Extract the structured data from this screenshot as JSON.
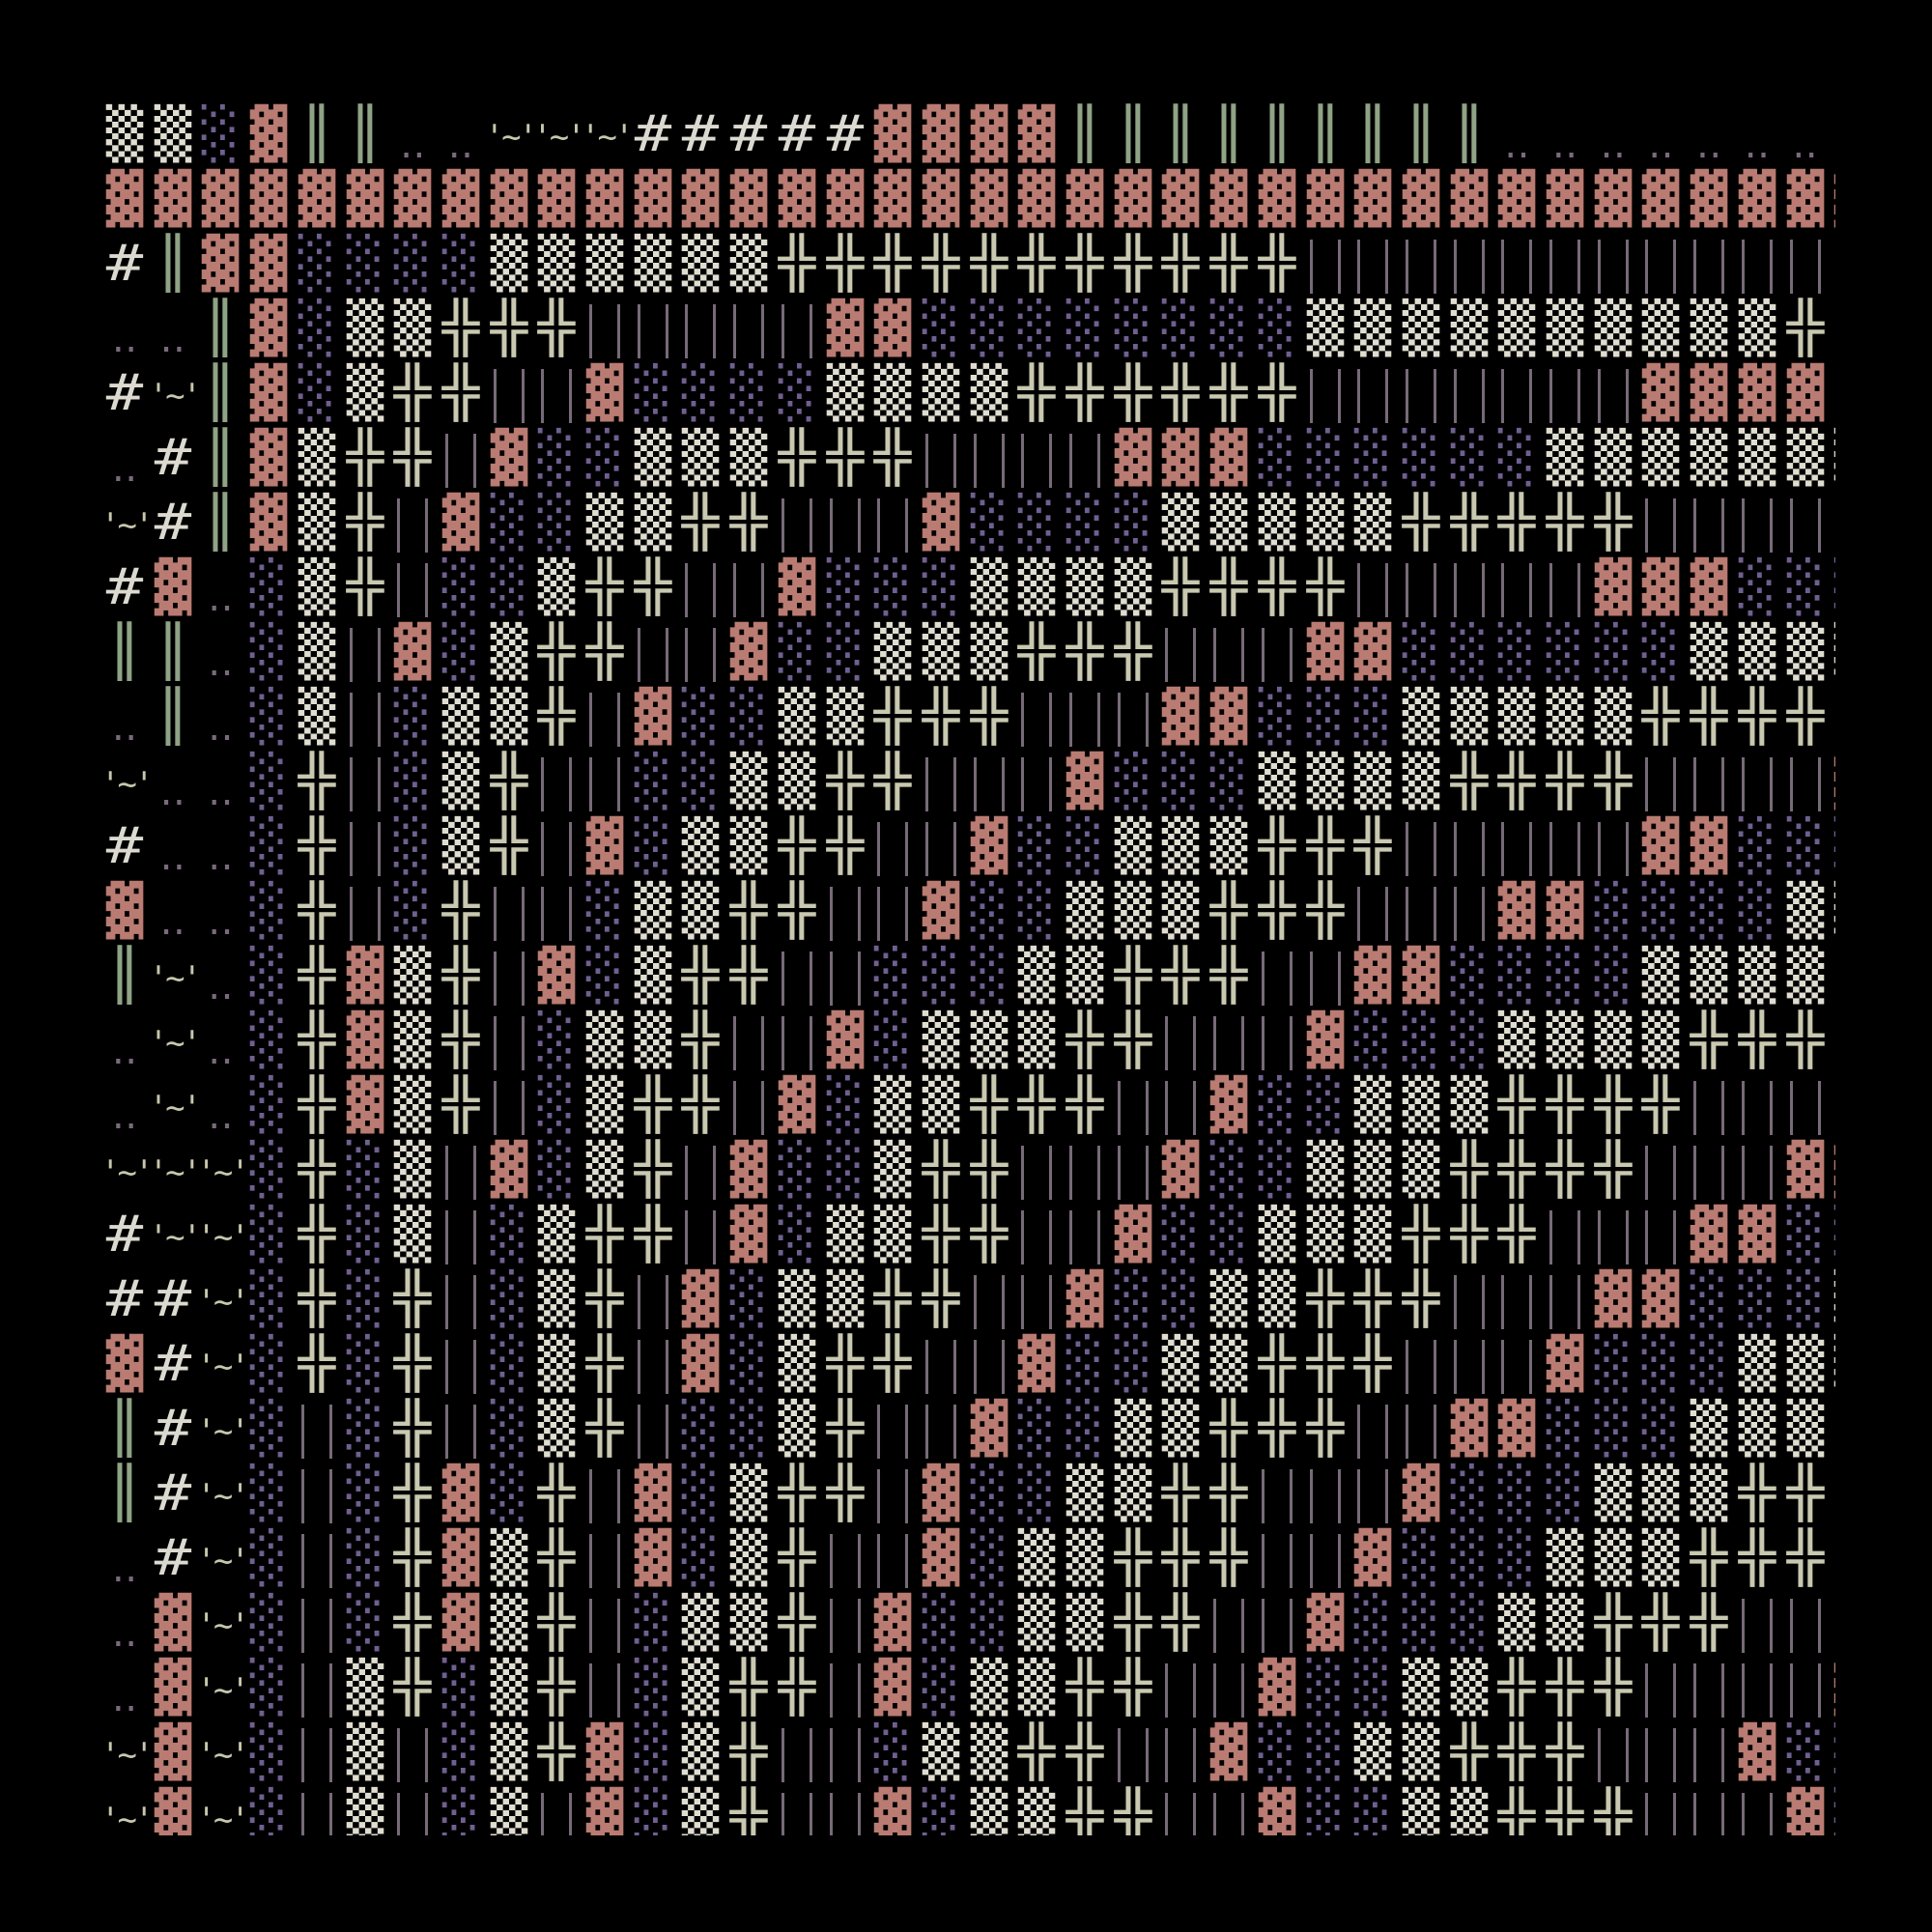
{
  "palette": {
    "▓": "#b97b72",
    "▒": "#e0ddd0",
    "░": "#6f6090",
    "╬": "#c9c8b0",
    "║": "#8fa385",
    "|": "#776a78",
    "#": "#dcdad0",
    "‥": "#7a6a7c",
    "~": "#c8c7ad",
    "-": "#c8c7ad"
  },
  "glyph_text": {
    "~": "'~'"
  },
  "rows": [
    "▒▒░▓║║‥‥~~~#####▓▓▓▓║║║║║║║║║‥‥‥‥‥‥‥‥",
    "▓▓▓▓▓▓▓▓▓▓▓▓▓▓▓▓▓▓▓▓▓▓▓▓▓▓▓▓▓▓▓▓▓▓▓▓▓",
    "#║▓▓░░░░▒▒▒▒▒▒╬╬╬╬╬╬╬╬╬╬╬||||||||||||",
    "‥‥║▓░▒▒╬╬╬|||||▓▓░░░░░░░░▒▒▒▒▒▒▒▒▒▒╬-",
    "#~║▓░▒╬╬||▓░░░░▒▒▒▒╬╬╬╬╬╬|||||||▓▓▓▓-",
    "‥#║▓▒╬╬|▓░░▒▒▒╬╬╬||||▓▓▓░░░░░░▒▒▒▒▒▒▒",
    "~#║▓▒╬|▓░░▒▒╬╬|||▓░░░░▒▒▒▒▒╬╬╬╬╬|||||",
    "#▓‥░▒╬|░░▒╬╬||▓░░░▒▒▒▒╬╬╬╬|||||▓▓▓░░░",
    "║║‥░▒|▓░▒╬╬||▓░░▒▒▒╬╬╬|||▓▓░░░░░░▒▒▒▒",
    "‥║‥░▒|░▒▒╬|▓░░▒▒╬╬╬|||▓▓░░░▒▒▒▒▒╬╬╬╬|",
    "~‥‥░╬|░▒╬||░░▒▒╬╬|||▓░░░▒▒▒▒╬╬╬╬||||▓",
    "#‥‥░╬|░▒╬|▓░▒▒╬╬||▓░░▒▒▒╬╬╬|||||▓▓░░░",
    "▓‥‥░╬|░╬||░▒▒╬╬||▓░░▒▒▒╬╬╬|||▓▓░░░░▒▒",
    "║~‥░╬▓▒╬|▓░▒╬╬||░░░▒▒╬╬╬||▓▓░░░░▒▒▒▒-",
    "‥~‥░╬▓▒╬|░▒▒╬||▓░▒▒▒╬╬|||▓░░░▒▒▒▒╬╬╬-",
    "‥~‥░╬▓▒╬|░▒╬╬|▓░▒▒╬╬╬||▓░░▒▒▒╬╬╬╬||||",
    "~~~░╬░▒|▓░▒╬|▓░░▒╬╬|||▓░░▒▒▒╬╬╬╬|||▓▓",
    "#~~░╬░▒|░▒╬╬|▓░▒▒╬╬||▓░░▒▒▒╬╬╬|||▓▓░░",
    "##~░╬░╬|░▒╬|▓░▒▒╬╬||▓░░▒▒╬╬╬|||▓▓░░░▒",
    "▓#~░╬░╬|░▒╬|▓░▒╬╬||▓░░▒▒╬╬╬|||▓░░░▒▒▒",
    "║#~░|░╬|░▒╬|░░▒╬||▓░░▒▒╬╬╬||▓▓░░░▒▒▒-",
    "║#~░|░╬▓░╬|▓░▒╬╬|▓░░▒▒╬╬|||▓░░░▒▒▒╬╬-",
    "‥#~░|░╬▓▒╬|▓░▒╬||▓░▒▒╬╬╬||▓░░░▒▒▒╬╬╬|",
    "‥▓~░|░╬▓▒╬|░▒▒╬|▓░░▒▒╬╬||▓░░░▒▒╬╬╬|||",
    "‥▓~░|▒╬░▒╬|░▒╬╬|▓░▒▒╬╬||▓░░▒▒╬╬╬||||▓",
    "~▓~░|▒|░▒╬▓░▒╬||░▒▒╬╬||▓░░▒▒╬╬╬|||▓░░",
    "~▓~░|▒|░▒|▓░▒╬||▓░▒▒╬╬||▓░░▒▒╬╬╬|||▓░"
  ]
}
